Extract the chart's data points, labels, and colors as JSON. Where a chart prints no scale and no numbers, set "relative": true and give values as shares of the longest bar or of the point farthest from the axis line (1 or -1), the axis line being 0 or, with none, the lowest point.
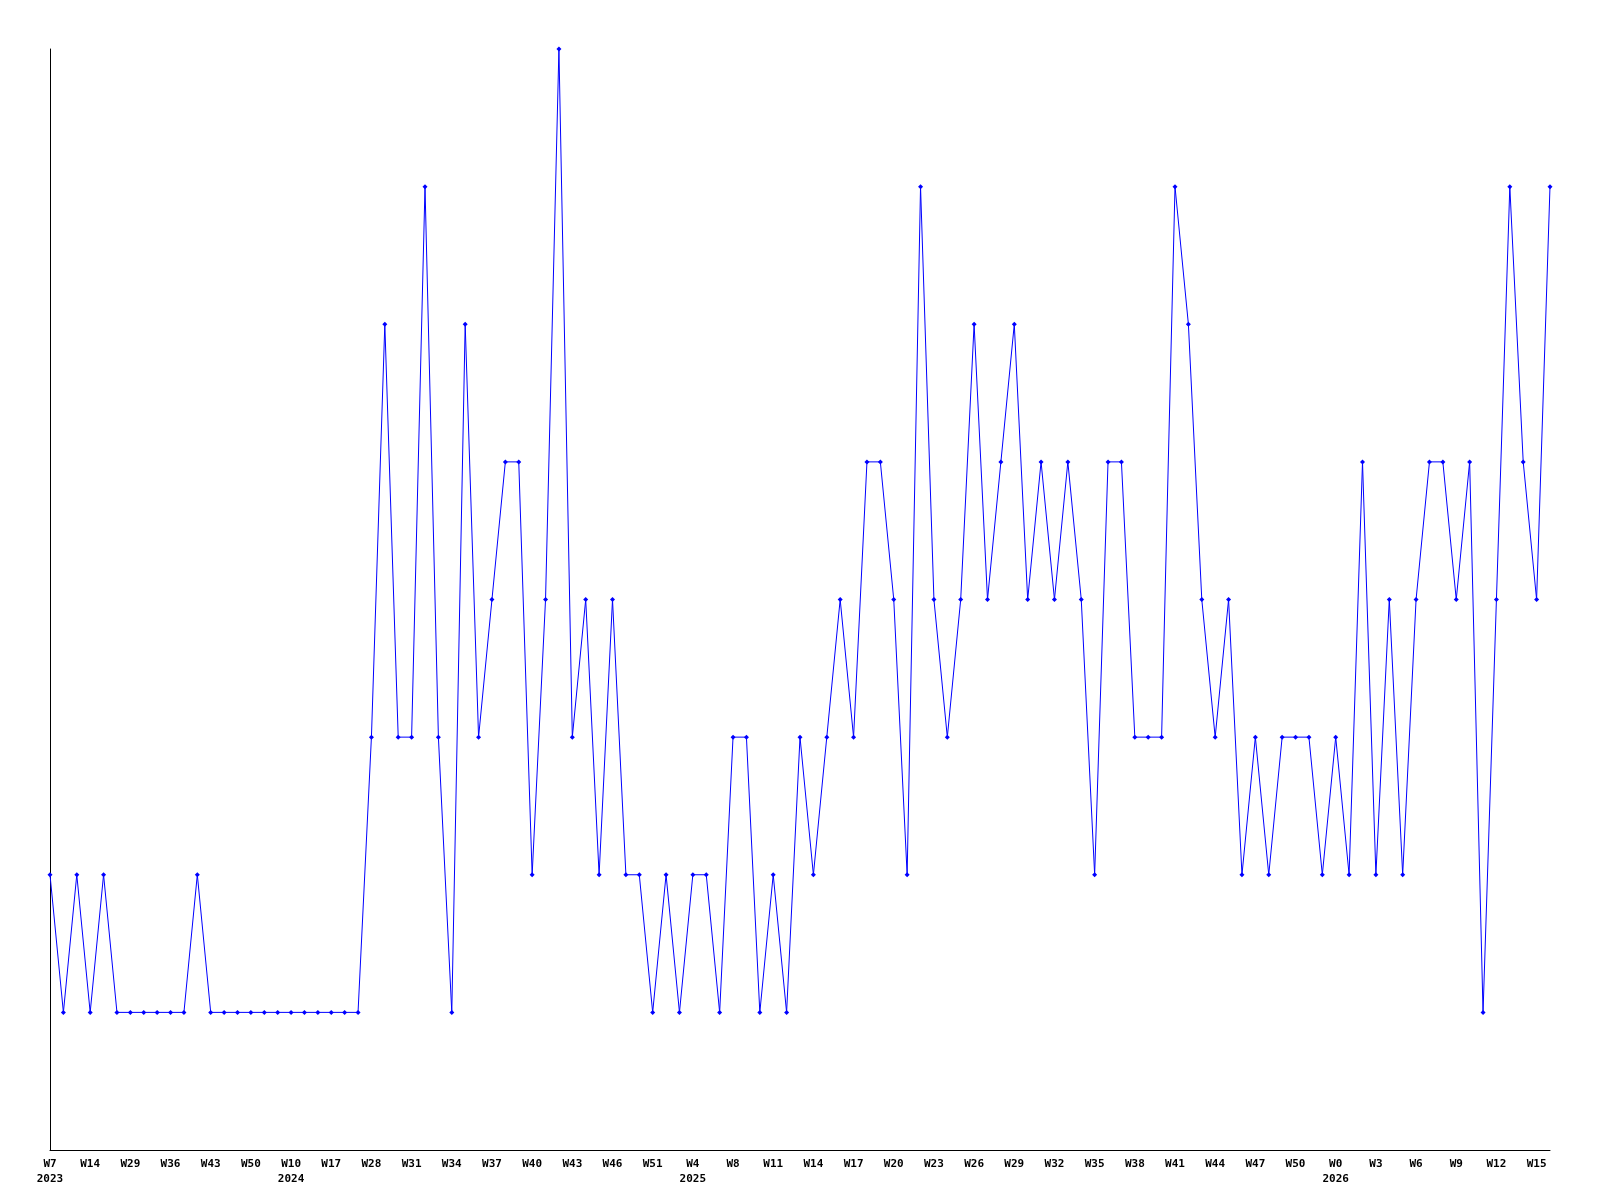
{
  "chart_data": {
    "type": "line",
    "relative": true,
    "marker": "diamond",
    "line_style": "solid",
    "categories": [
      "W7\n2023",
      null,
      null,
      "W14",
      null,
      null,
      "W29",
      null,
      null,
      "W36",
      null,
      null,
      "W43",
      null,
      null,
      "W50",
      null,
      null,
      "W10\n2024",
      null,
      null,
      "W17",
      null,
      null,
      "W28",
      null,
      null,
      "W31",
      null,
      null,
      "W34",
      null,
      null,
      "W37",
      null,
      null,
      "W40",
      null,
      null,
      "W43",
      null,
      null,
      "W46",
      null,
      null,
      "W51",
      null,
      null,
      "W4\n2025",
      null,
      null,
      "W8",
      null,
      null,
      "W11",
      null,
      null,
      "W14",
      null,
      null,
      "W17",
      null,
      null,
      "W20",
      null,
      null,
      "W23",
      null,
      null,
      "W26",
      null,
      null,
      "W29",
      null,
      null,
      "W32",
      null,
      null,
      "W35",
      null,
      null,
      "W38",
      null,
      null,
      "W41",
      null,
      null,
      "W44",
      null,
      null,
      "W47",
      null,
      null,
      "W50",
      null,
      null,
      "W0\n2026",
      null,
      null,
      "W3",
      null,
      null,
      "W6",
      null,
      null,
      "W9",
      null,
      null,
      "W12",
      null,
      null,
      "W15",
      null
    ],
    "series": [
      {
        "color": "#0000ff",
        "values": [
          0.25,
          0.125,
          0.25,
          0.125,
          0.25,
          0.125,
          0.125,
          0.125,
          0.125,
          0.125,
          0.125,
          0.25,
          0.125,
          0.125,
          0.125,
          0.125,
          0.125,
          0.125,
          0.125,
          0.125,
          0.125,
          0.125,
          0.125,
          0.125,
          0.375,
          0.75,
          0.375,
          0.375,
          0.875,
          0.375,
          0.125,
          0.75,
          0.375,
          0.5,
          0.625,
          0.625,
          0.25,
          0.5,
          1,
          0.375,
          0.5,
          0.25,
          0.5,
          0.25,
          0.25,
          0.125,
          0.25,
          0.125,
          0.25,
          0.25,
          0.125,
          0.375,
          0.375,
          0.125,
          0.25,
          0.125,
          0.375,
          0.25,
          0.375,
          0.5,
          0.375,
          0.625,
          0.625,
          0.5,
          0.25,
          0.875,
          0.5,
          0.375,
          0.5,
          0.75,
          0.5,
          0.625,
          0.75,
          0.5,
          0.625,
          0.5,
          0.625,
          0.5,
          0.25,
          0.625,
          0.625,
          0.375,
          0.375,
          0.375,
          0.875,
          0.75,
          0.5,
          0.375,
          0.5,
          0.25,
          0.375,
          0.25,
          0.375,
          0.375,
          0.375,
          0.25,
          0.375,
          0.25,
          0.625,
          0.25,
          0.5,
          0.25,
          0.5,
          0.625,
          0.625,
          0.5,
          0.625,
          0.125,
          0.5,
          0.875,
          0.625,
          0.5,
          0.875
        ]
      }
    ]
  }
}
